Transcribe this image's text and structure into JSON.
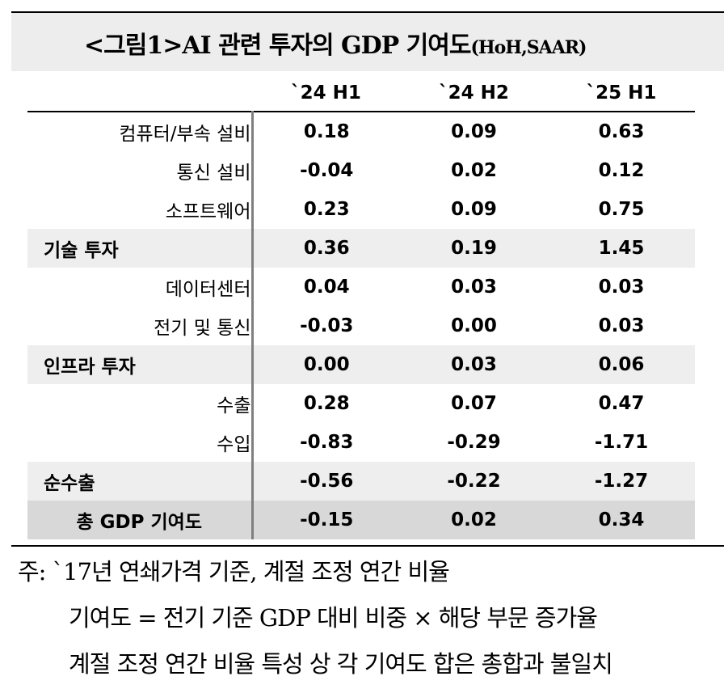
{
  "title": {
    "main": "<그림1>AI 관련 투자의 GDP 기여도",
    "sub": "(HoH,SAAR)"
  },
  "table": {
    "headers": [
      "`24 H1",
      "`24 H2",
      "`25 H1"
    ],
    "rows": [
      {
        "label": "컴퓨터/부속 설비",
        "values": [
          "0.18",
          "0.09",
          "0.63"
        ]
      },
      {
        "label": "통신 설비",
        "values": [
          "-0.04",
          "0.02",
          "0.12"
        ]
      },
      {
        "label": "소프트웨어",
        "values": [
          "0.23",
          "0.09",
          "0.75"
        ]
      },
      {
        "label": "기술 투자",
        "values": [
          "0.36",
          "0.19",
          "1.45"
        ]
      },
      {
        "label": "데이터센터",
        "values": [
          "0.04",
          "0.03",
          "0.03"
        ]
      },
      {
        "label": "전기 및 통신",
        "values": [
          "-0.03",
          "0.00",
          "0.03"
        ]
      },
      {
        "label": "인프라 투자",
        "values": [
          "0.00",
          "0.03",
          "0.06"
        ]
      },
      {
        "label": "수출",
        "values": [
          "0.28",
          "0.07",
          "0.47"
        ]
      },
      {
        "label": "수입",
        "values": [
          "-0.83",
          "-0.29",
          "-1.71"
        ]
      },
      {
        "label": "순수출",
        "values": [
          "-0.56",
          "-0.22",
          "-1.27"
        ]
      },
      {
        "label": "총 GDP 기여도",
        "values": [
          "-0.15",
          "0.02",
          "0.34"
        ]
      }
    ]
  },
  "notes": {
    "line1": "주: `17년 연쇄가격 기준, 계절 조정 연간 비율",
    "line2": "기여도 = 전기 기준 GDP 대비 비중 × 해당 부문 증가율",
    "line3": "계절 조정 연간 비율 특성 상 각 기여도 합은 총합과 불일치"
  },
  "colors": {
    "title_bg": "#ededed",
    "subtotal_bg": "#eeeeee",
    "total_bg": "#d8d8d8",
    "divider": "#7f7f7f"
  }
}
